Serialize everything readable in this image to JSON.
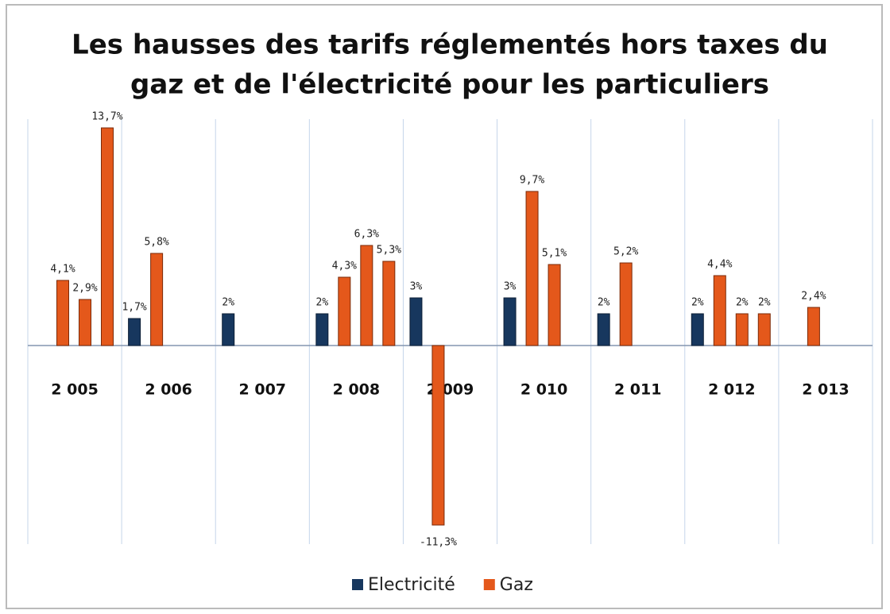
{
  "chart_data": {
    "type": "bar",
    "title": "Les hausses des tarifs réglementés hors taxes du gaz et de l'électricité pour les particuliers",
    "categories": [
      "2 005",
      "2 006",
      "2 007",
      "2 008",
      "2 009",
      "2 010",
      "2 011",
      "2 012",
      "2 013"
    ],
    "series": [
      {
        "name": "Electricité",
        "color": "#17375e",
        "values": [
          [],
          [
            1.7
          ],
          [
            2
          ],
          [
            2
          ],
          [
            3
          ],
          [
            3
          ],
          [
            2
          ],
          [
            2
          ],
          []
        ],
        "value_labels": [
          [],
          [
            "1,7%"
          ],
          [
            "2%"
          ],
          [
            "2%"
          ],
          [
            "3%"
          ],
          [
            "3%"
          ],
          [
            "2%"
          ],
          [
            "2%"
          ],
          []
        ]
      },
      {
        "name": "Gaz",
        "color": "#e4581b",
        "values": [
          [
            4.1,
            2.9,
            13.7
          ],
          [
            5.8
          ],
          [],
          [
            4.3,
            6.3,
            5.3
          ],
          [
            -11.3
          ],
          [
            9.7,
            5.1
          ],
          [
            5.2
          ],
          [
            4.4,
            2,
            2
          ],
          [
            2.4
          ]
        ],
        "value_labels": [
          [
            "4,1%",
            "2,9%",
            "13,7%"
          ],
          [
            "5,8%"
          ],
          [],
          [
            "4,3%",
            "6,3%",
            "5,3%"
          ],
          [
            "-11,3%"
          ],
          [
            "9,7%",
            "5,1%"
          ],
          [
            "5,2%"
          ],
          [
            "4,4%",
            "2%",
            "2%"
          ],
          [
            "2,4%"
          ]
        ]
      }
    ],
    "ylim": [
      -12.5,
      14.5
    ],
    "legend": "bottom"
  }
}
